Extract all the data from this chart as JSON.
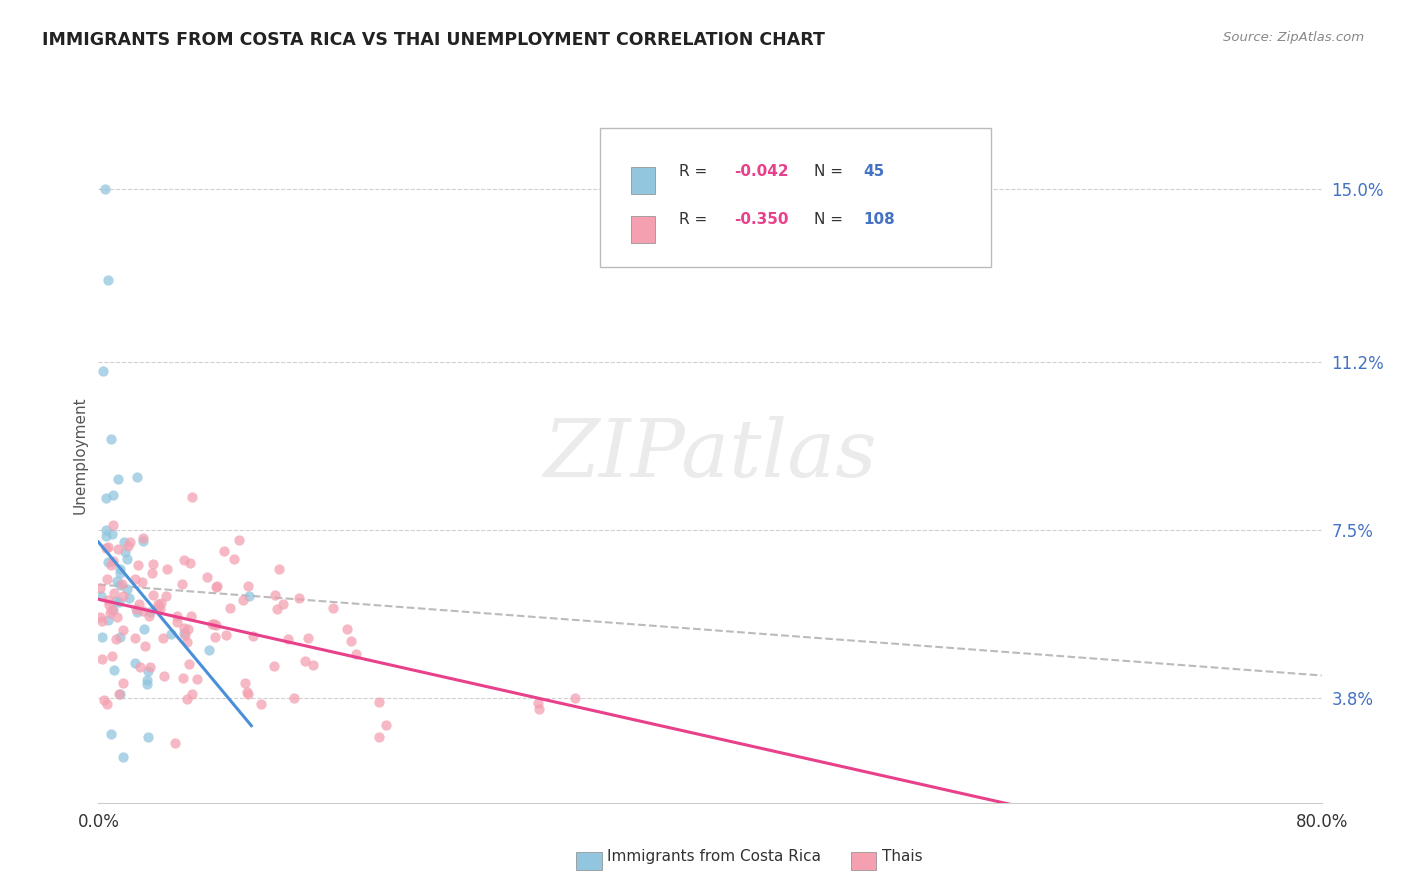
{
  "title": "IMMIGRANTS FROM COSTA RICA VS THAI UNEMPLOYMENT CORRELATION CHART",
  "source_text": "Source: ZipAtlas.com",
  "ylabel": "Unemployment",
  "ytick_labels": [
    "3.8%",
    "7.5%",
    "11.2%",
    "15.0%"
  ],
  "ytick_values": [
    0.038,
    0.075,
    0.112,
    0.15
  ],
  "xtick_labels": [
    "0.0%",
    "",
    "",
    "",
    "",
    "",
    "",
    "",
    "",
    "80.0%"
  ],
  "xlim": [
    0.0,
    0.8
  ],
  "ylim": [
    0.015,
    0.168
  ],
  "legend_x_labels": [
    "Immigrants from Costa Rica",
    "Thais"
  ],
  "watermark": "ZIPatlas",
  "background_color": "#ffffff",
  "grid_color": "#d0d0d0",
  "costa_rica_color": "#92c5de",
  "thai_color": "#f4a0b0",
  "trendline_cr_color": "#4a90d9",
  "trendline_thai_color": "#e8408a",
  "trendline_dashed_color": "#aaaaaa",
  "ytick_color": "#4472c4",
  "n_cr": 45,
  "n_thai": 108,
  "r_cr": -0.042,
  "r_thai": -0.35,
  "r_color": "#e8408a",
  "n_color": "#4472c4"
}
